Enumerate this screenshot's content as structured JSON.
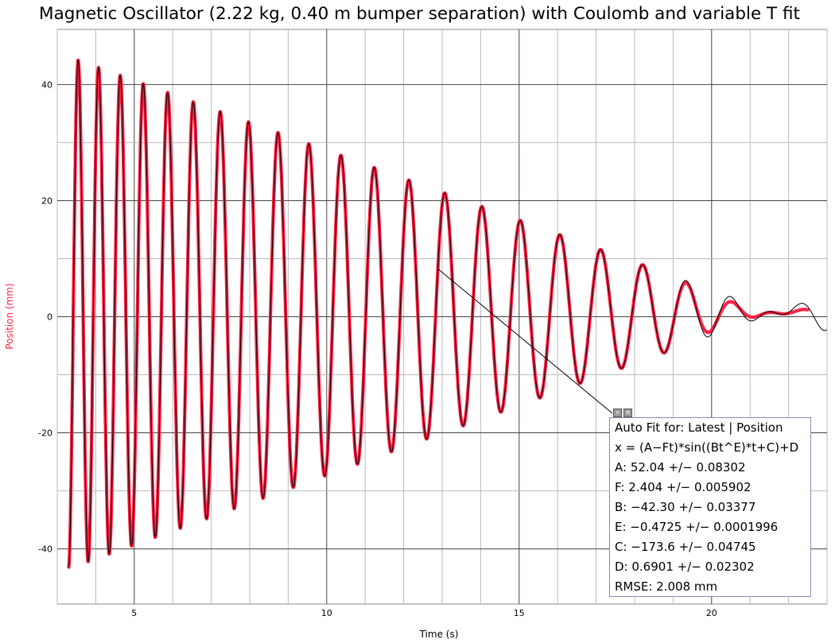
{
  "title": "Magnetic Oscillator (2.22 kg, 0.40 m bumper separation) with Coulomb and variable T fit",
  "chart_data": {
    "type": "line",
    "xlabel": "Time (s)",
    "ylabel": "Position (mm)",
    "xlim": [
      3.0,
      23.0
    ],
    "ylim": [
      -49.5,
      49.5
    ],
    "x_ticks": [
      5,
      10,
      15,
      20
    ],
    "y_ticks": [
      -40,
      -20,
      0,
      20,
      40
    ],
    "grid": true,
    "series": [
      {
        "role": "measured",
        "color": "#ff2244",
        "x_range": [
          3.3,
          22.5
        ]
      },
      {
        "role": "fit",
        "color": "#000000",
        "x_range": [
          3.3,
          23.0
        ]
      }
    ],
    "fit_model": {
      "A": 52.04,
      "F": 2.404,
      "B": -42.3,
      "E": -0.4725,
      "C": -173.6,
      "D": 0.6901
    }
  },
  "fit_box": {
    "header": "Auto Fit for: Latest | Position",
    "equation": "x = (A−Ft)*sin((Bt^E)*t+C)+D",
    "params": [
      "A: 52.04 +/− 0.08302",
      "F: 2.404 +/− 0.005902",
      "B: −42.30 +/− 0.03377",
      "E: −0.4725 +/− 0.0001996",
      "C: −173.6 +/− 0.04745",
      "D: 0.6901 +/− 0.02302"
    ],
    "rmse": "RMSE: 2.008 mm"
  },
  "colors": {
    "data": "#ff2244",
    "fit": "#000000",
    "major_grid": "#444444",
    "minor_grid": "#bbbbbb"
  }
}
